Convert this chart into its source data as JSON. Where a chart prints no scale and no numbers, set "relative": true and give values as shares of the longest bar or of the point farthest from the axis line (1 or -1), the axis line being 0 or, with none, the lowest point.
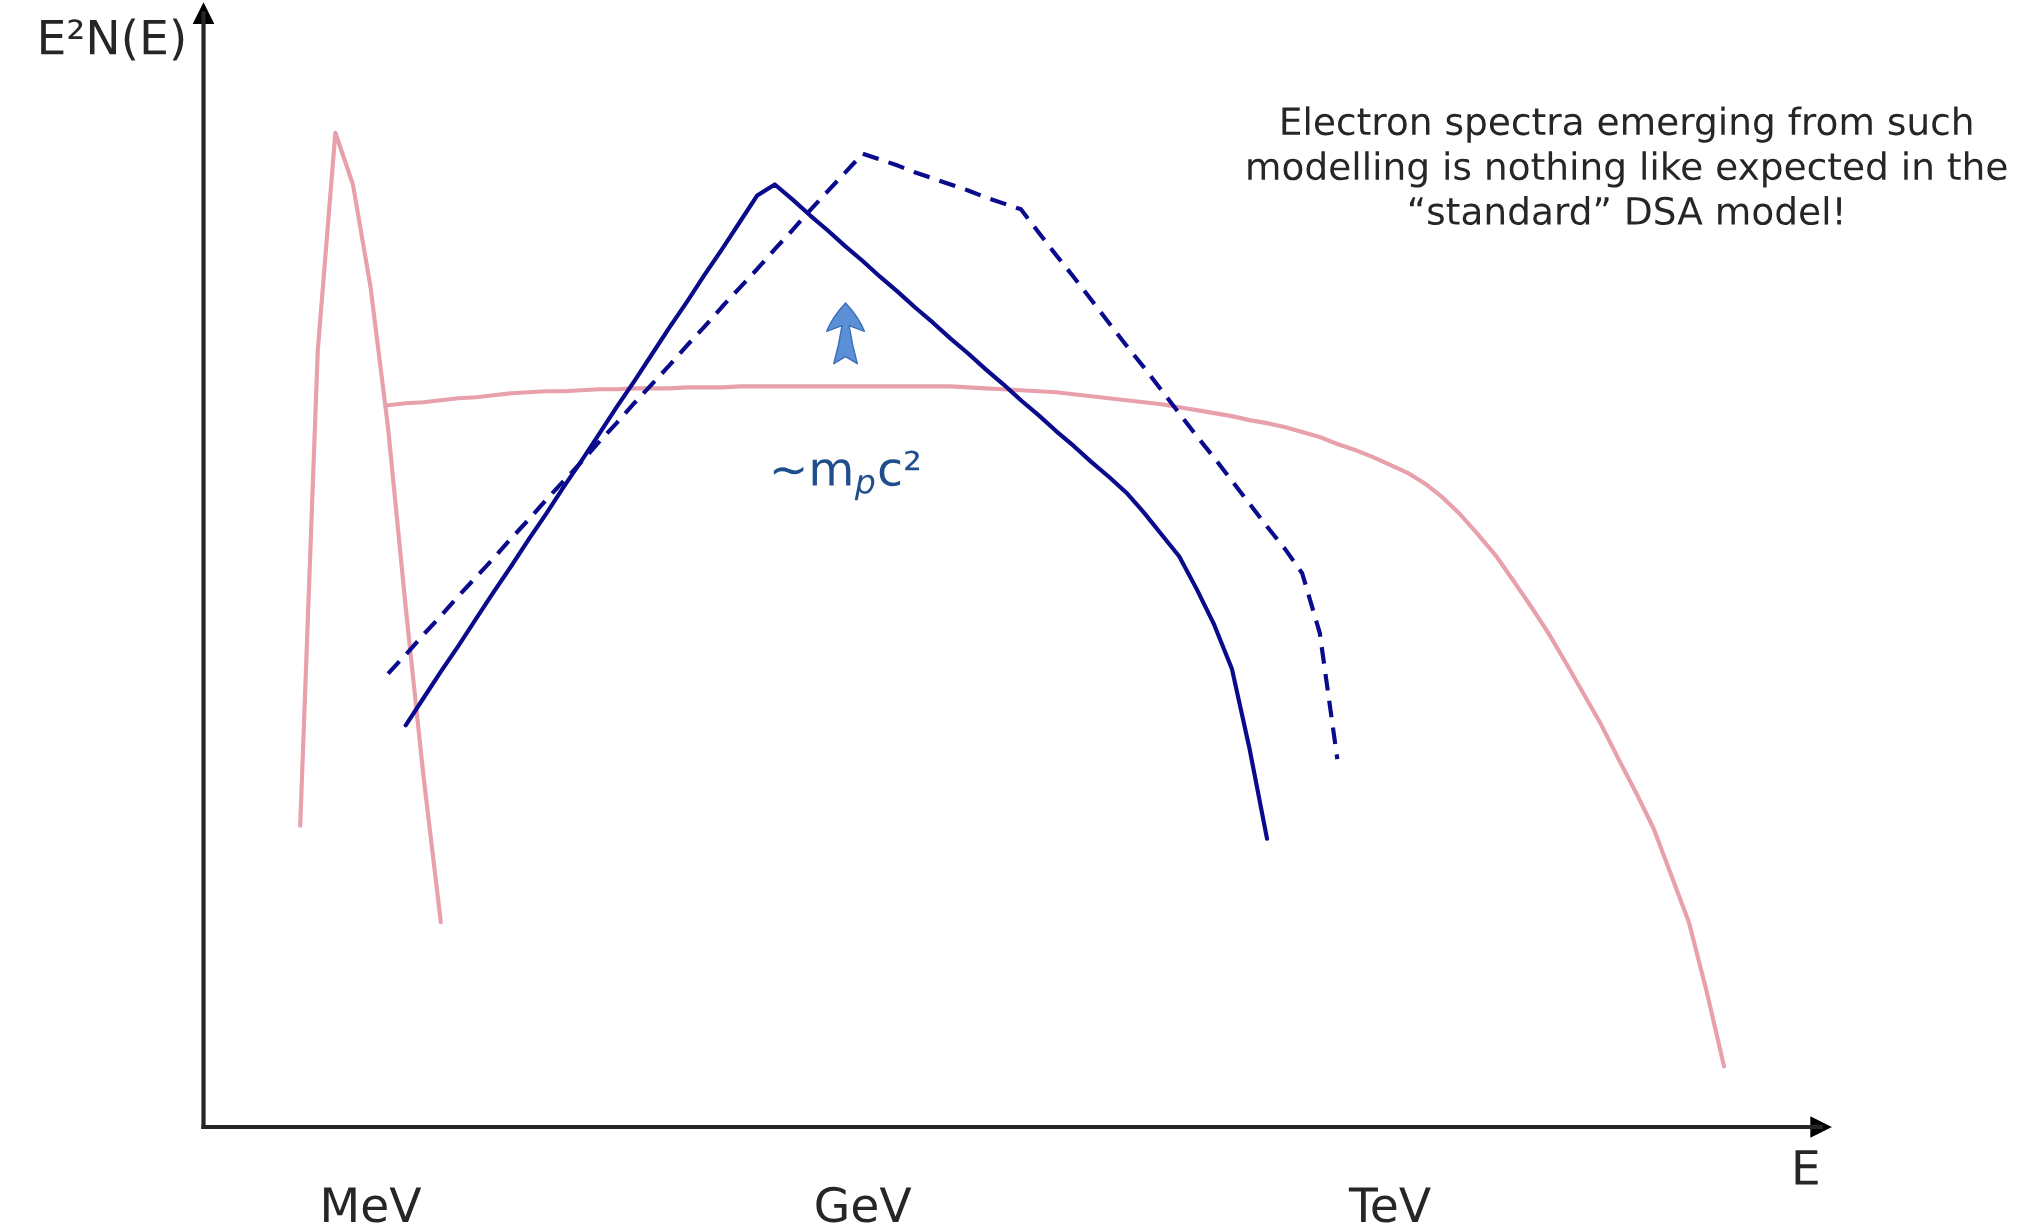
{
  "chart_data": {
    "type": "line",
    "relative": true,
    "xlabel": "E",
    "ylabel": "E²N(E)",
    "categories": [
      null,
      null,
      null,
      null,
      null,
      null,
      null,
      null,
      null,
      "MeV",
      null,
      null,
      null,
      null,
      null,
      null,
      null,
      null,
      null,
      null,
      null,
      null,
      null,
      null,
      null,
      null,
      null,
      null,
      null,
      null,
      null,
      null,
      null,
      null,
      null,
      null,
      null,
      "GeV",
      null,
      null,
      null,
      null,
      null,
      null,
      null,
      null,
      null,
      null,
      null,
      null,
      null,
      null,
      null,
      null,
      null,
      null,
      null,
      null,
      null,
      null,
      null,
      null,
      null,
      null,
      null,
      null,
      null,
      "TeV",
      null,
      null,
      null,
      null,
      null,
      null,
      null,
      null,
      null,
      null,
      null,
      null,
      null,
      null,
      null,
      null,
      null,
      null,
      null,
      null,
      null,
      null,
      null,
      null
    ],
    "tick_labels": "x",
    "series": [
      {
        "color": "#e8a0ab",
        "values": [
          null,
          null,
          null,
          null,
          null,
          0.303,
          0.781,
          1.0,
          0.948,
          0.845,
          0.703,
          0.523,
          0.355,
          0.206,
          null,
          null,
          null,
          null,
          null,
          null,
          null,
          null,
          null,
          null,
          null,
          null,
          null,
          null,
          null,
          null,
          null,
          null,
          null,
          null,
          null,
          null,
          null,
          null,
          null,
          null,
          null,
          null,
          null,
          null,
          null,
          null,
          null,
          null,
          null,
          null,
          null,
          null,
          null,
          null,
          null,
          null,
          null,
          null,
          null,
          null,
          null,
          null,
          null,
          null,
          null,
          null,
          null,
          null,
          null,
          null,
          null,
          null,
          null,
          null,
          null,
          null,
          null,
          null,
          null,
          null,
          null,
          null,
          null,
          null,
          null,
          null,
          null,
          null,
          null,
          null,
          null,
          null
        ]
      },
      {
        "color": "#e8a0ab",
        "values": [
          null,
          null,
          null,
          null,
          null,
          null,
          null,
          null,
          null,
          null,
          0.726,
          0.728,
          0.729,
          0.731,
          0.733,
          0.734,
          0.736,
          0.738,
          0.739,
          0.74,
          0.74,
          0.741,
          0.742,
          0.742,
          0.743,
          0.743,
          0.743,
          0.744,
          0.744,
          0.744,
          0.745,
          0.745,
          0.745,
          0.745,
          0.745,
          0.745,
          0.745,
          0.745,
          0.745,
          0.745,
          0.745,
          0.745,
          0.745,
          0.744,
          0.743,
          0.742,
          0.741,
          0.74,
          0.739,
          0.737,
          0.735,
          0.733,
          0.731,
          0.729,
          0.727,
          0.724,
          0.721,
          0.718,
          0.715,
          0.711,
          0.708,
          0.704,
          0.699,
          0.694,
          0.687,
          0.681,
          0.674,
          0.666,
          0.658,
          0.647,
          0.633,
          0.616,
          0.596,
          0.575,
          0.55,
          0.524,
          0.497,
          0.467,
          0.436,
          0.405,
          0.37,
          0.336,
          0.3,
          0.253,
          0.206,
          0.137,
          0.061,
          null,
          null,
          null,
          null,
          null
        ]
      },
      {
        "color": "#0a0a8c",
        "line_style": "solid",
        "values": [
          null,
          null,
          null,
          null,
          null,
          null,
          null,
          null,
          null,
          null,
          null,
          0.404,
          0.431,
          0.458,
          0.484,
          0.511,
          0.538,
          0.564,
          0.591,
          0.617,
          0.644,
          0.67,
          0.697,
          0.724,
          0.75,
          0.777,
          0.804,
          0.83,
          0.857,
          0.883,
          0.91,
          0.937,
          0.948,
          0.933,
          0.917,
          0.902,
          0.886,
          0.871,
          0.855,
          0.84,
          0.824,
          0.809,
          0.793,
          0.778,
          0.762,
          0.747,
          0.731,
          0.716,
          0.7,
          0.685,
          0.669,
          0.654,
          0.638,
          0.618,
          0.596,
          0.574,
          0.541,
          0.505,
          0.461,
          0.381,
          0.29,
          null,
          null,
          null,
          null,
          null,
          null,
          null,
          null,
          null,
          null,
          null,
          null,
          null,
          null,
          null,
          null,
          null,
          null,
          null,
          null,
          null,
          null,
          null,
          null,
          null,
          null,
          null,
          null,
          null,
          null,
          null
        ]
      },
      {
        "color": "#0a0a8c",
        "line_style": "dashed",
        "values": [
          null,
          null,
          null,
          null,
          null,
          null,
          null,
          null,
          null,
          null,
          0.456,
          0.475,
          0.495,
          0.514,
          0.534,
          0.553,
          0.572,
          0.592,
          0.611,
          0.631,
          0.65,
          0.669,
          0.689,
          0.708,
          0.728,
          0.747,
          0.766,
          0.786,
          0.805,
          0.825,
          0.844,
          0.863,
          0.883,
          0.902,
          0.922,
          0.941,
          0.96,
          0.979,
          0.973,
          0.967,
          0.96,
          0.954,
          0.948,
          0.942,
          0.935,
          0.929,
          0.923,
          0.9,
          0.877,
          0.855,
          0.832,
          0.809,
          0.786,
          0.764,
          0.741,
          0.718,
          0.695,
          0.673,
          0.65,
          0.627,
          0.604,
          0.582,
          0.557,
          0.497,
          0.37,
          null,
          null,
          null,
          null,
          null,
          null,
          null,
          null,
          null,
          null,
          null,
          null,
          null,
          null,
          null,
          null,
          null,
          null,
          null,
          null,
          null,
          null,
          null,
          null,
          null,
          null,
          null
        ]
      }
    ],
    "annotations": [
      "~m$_{p}$c²",
      "Electron spectra emerging from such\nmodelling is nothing like expected in the\n“standard” DSA model!"
    ]
  }
}
